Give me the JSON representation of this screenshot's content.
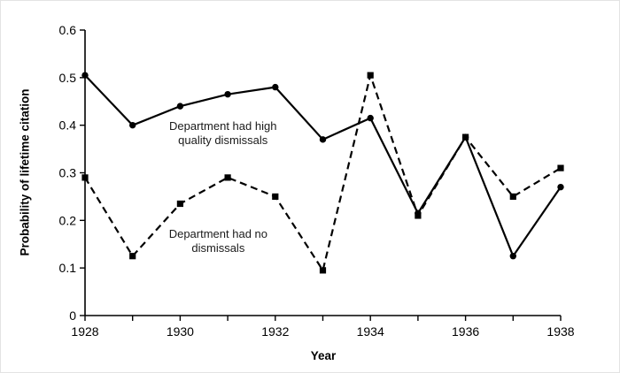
{
  "chart_data": {
    "type": "line",
    "title": "",
    "xlabel": "Year",
    "ylabel": "Probability of lifetime citation",
    "grid": false,
    "legend_position": "none",
    "x": [
      1928,
      1929,
      1930,
      1931,
      1932,
      1933,
      1934,
      1935,
      1936,
      1937,
      1938
    ],
    "xlim": [
      1928,
      1938
    ],
    "ylim": [
      0,
      0.6
    ],
    "x_tick_labels": [
      "1928",
      "",
      "1930",
      "",
      "1932",
      "",
      "1934",
      "",
      "1936",
      "",
      "1938"
    ],
    "y_ticks": [
      0,
      0.1,
      0.2,
      0.3,
      0.4,
      0.5,
      0.6
    ],
    "y_tick_labels": [
      "0",
      "0.1",
      "0.2",
      "0.3",
      "0.4",
      "0.5",
      "0.6"
    ],
    "series": [
      {
        "name": "Department had high quality dismissals",
        "line_style": "solid",
        "marker": "circle",
        "color": "#000000",
        "values": [
          0.505,
          0.4,
          0.44,
          0.465,
          0.48,
          0.37,
          0.415,
          0.215,
          0.375,
          0.125,
          0.27
        ]
      },
      {
        "name": "Department had no dismissals",
        "line_style": "dashed",
        "marker": "square",
        "color": "#000000",
        "values": [
          0.29,
          0.125,
          0.235,
          0.29,
          0.25,
          0.095,
          0.505,
          0.21,
          0.375,
          0.25,
          0.31
        ]
      }
    ],
    "annotations": [
      {
        "lines": [
          "Department had high",
          "quality dismissals"
        ],
        "x": 1930.9,
        "y": 0.383
      },
      {
        "lines": [
          "Department had no",
          "dismissals"
        ],
        "x": 1930.8,
        "y": 0.156
      }
    ]
  }
}
